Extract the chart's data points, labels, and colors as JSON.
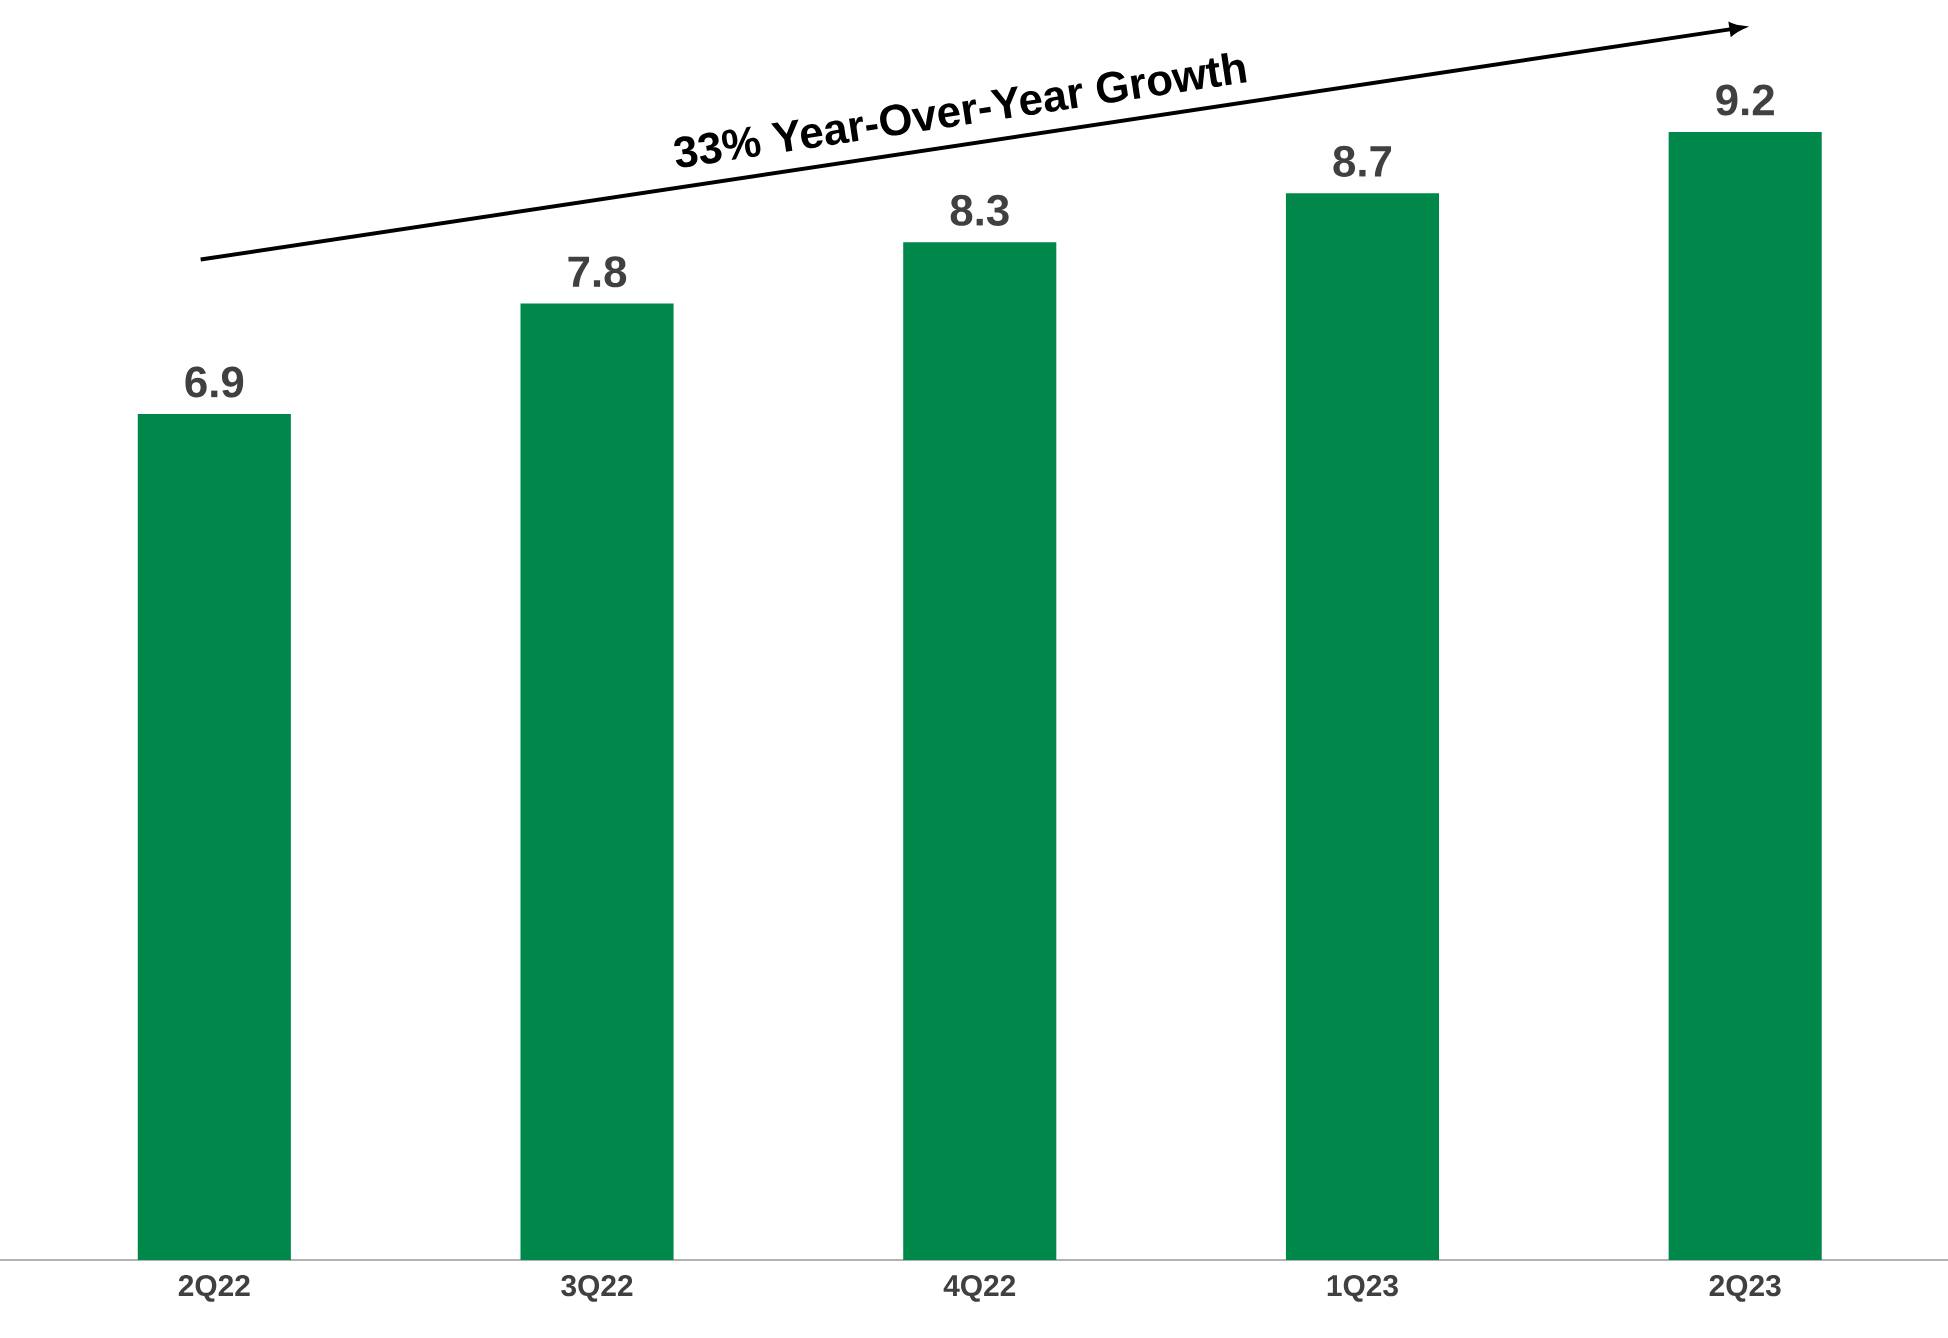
{
  "chart_data": {
    "type": "bar",
    "categories": [
      "2Q22",
      "3Q22",
      "4Q22",
      "1Q23",
      "2Q23"
    ],
    "values": [
      6.9,
      7.8,
      8.3,
      8.7,
      9.2
    ],
    "color": "#00884a",
    "data_labels": true,
    "annotations": [
      "33% Year-Over-Year Growth"
    ]
  }
}
